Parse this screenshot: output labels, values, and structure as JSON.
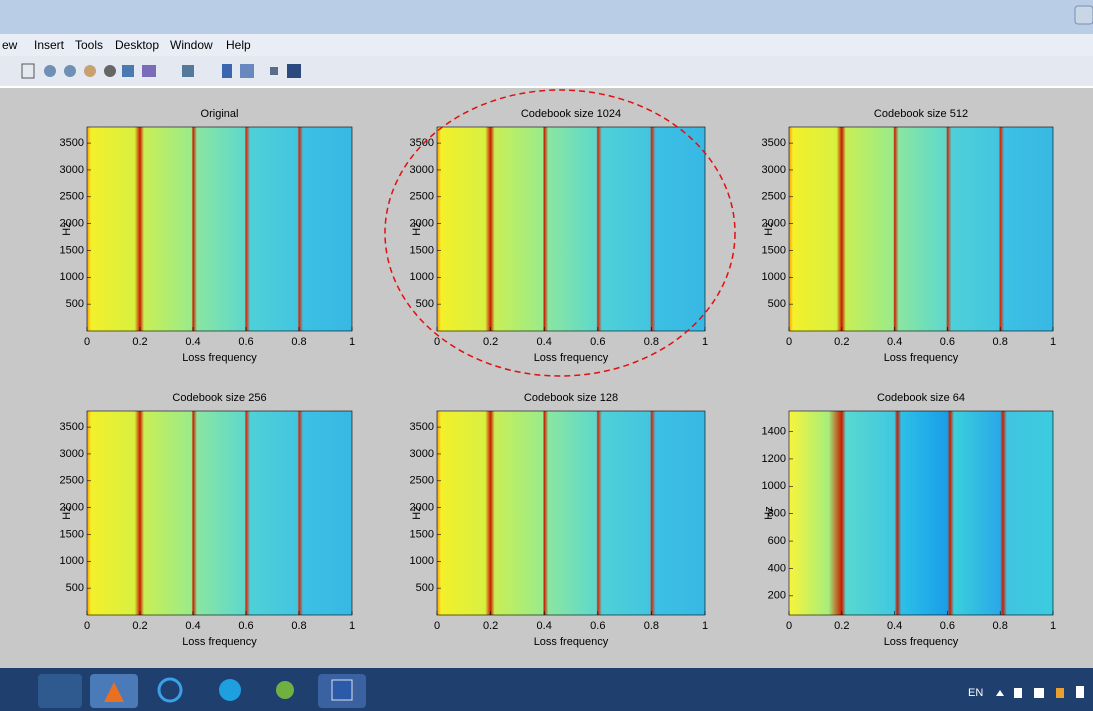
{
  "menu": [
    "ew",
    "Insert",
    "Tools",
    "Desktop",
    "Window",
    "Help"
  ],
  "taskbar": {
    "language": "EN"
  },
  "chart_data": [
    {
      "type": "heatmap",
      "title": "Original",
      "xlabel": "Loss frequency",
      "ylabel": "Hz",
      "xlim": [
        0,
        1
      ],
      "xticks": [
        0,
        0.2,
        0.4,
        0.6,
        0.8,
        1
      ],
      "ylim": [
        0,
        3800
      ],
      "yticks": [
        500,
        1000,
        1500,
        2000,
        2500,
        3000,
        3500
      ]
    },
    {
      "type": "heatmap",
      "title": "Codebook size 1024",
      "xlabel": "Loss frequency",
      "ylabel": "Hz",
      "xlim": [
        0,
        1
      ],
      "xticks": [
        0,
        0.2,
        0.4,
        0.6,
        0.8,
        1
      ],
      "ylim": [
        0,
        3800
      ],
      "yticks": [
        500,
        1000,
        1500,
        2000,
        2500,
        3000,
        3500
      ]
    },
    {
      "type": "heatmap",
      "title": "Codebook size 512",
      "xlabel": "Loss frequency",
      "ylabel": "Hz",
      "xlim": [
        0,
        1
      ],
      "xticks": [
        0,
        0.2,
        0.4,
        0.6,
        0.8,
        1
      ],
      "ylim": [
        0,
        3800
      ],
      "yticks": [
        500,
        1000,
        1500,
        2000,
        2500,
        3000,
        3500
      ]
    },
    {
      "type": "heatmap",
      "title": "Codebook size 256",
      "xlabel": "Loss frequency",
      "ylabel": "Hz",
      "xlim": [
        0,
        1
      ],
      "xticks": [
        0,
        0.2,
        0.4,
        0.6,
        0.8,
        1
      ],
      "ylim": [
        0,
        3800
      ],
      "yticks": [
        500,
        1000,
        1500,
        2000,
        2500,
        3000,
        3500
      ]
    },
    {
      "type": "heatmap",
      "title": "Codebook size 128",
      "xlabel": "Loss frequency",
      "ylabel": "Hz",
      "xlim": [
        0,
        1
      ],
      "xticks": [
        0,
        0.2,
        0.4,
        0.6,
        0.8,
        1
      ],
      "ylim": [
        0,
        3800
      ],
      "yticks": [
        500,
        1000,
        1500,
        2000,
        2500,
        3000,
        3500
      ]
    },
    {
      "type": "heatmap",
      "title": "Codebook size 64",
      "xlabel": "Loss frequency",
      "ylabel": "Hz",
      "xlim": [
        0,
        1
      ],
      "xticks": [
        0,
        0.2,
        0.4,
        0.6,
        0.8,
        1
      ],
      "ylim": [
        60,
        1550
      ],
      "yticks": [
        200,
        400,
        600,
        800,
        1000,
        1200,
        1400
      ]
    }
  ]
}
